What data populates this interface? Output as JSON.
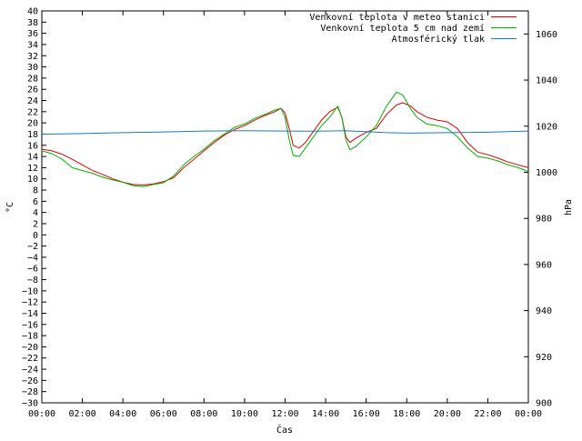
{
  "chart_data": {
    "type": "line",
    "xlabel": "Čas",
    "ylabel_left": "°C",
    "ylabel_right": "hPa",
    "xlim": [
      0,
      24
    ],
    "ylim_left": [
      -30,
      40
    ],
    "ylim_right": [
      900,
      1070
    ],
    "x_ticks": [
      "00:00",
      "02:00",
      "04:00",
      "06:00",
      "08:00",
      "10:00",
      "12:00",
      "14:00",
      "16:00",
      "18:00",
      "20:00",
      "22:00",
      "00:00"
    ],
    "y_left_ticks": [
      40,
      38,
      36,
      34,
      32,
      30,
      28,
      26,
      24,
      22,
      20,
      18,
      16,
      14,
      12,
      10,
      8,
      6,
      4,
      2,
      0,
      -2,
      -4,
      -6,
      -8,
      -10,
      -12,
      -14,
      -16,
      -18,
      -20,
      -22,
      -24,
      -26,
      -28,
      -30
    ],
    "y_right_ticks": [
      1060,
      1040,
      1020,
      1000,
      980,
      960,
      940,
      920,
      900
    ],
    "grid": false,
    "legend_position": "top-right",
    "series": [
      {
        "name": "Venkovní teplota v meteo stanici",
        "axis": "left",
        "color": "#e00000",
        "points": [
          [
            0,
            15.3
          ],
          [
            0.5,
            15.0
          ],
          [
            1.0,
            14.4
          ],
          [
            1.5,
            13.5
          ],
          [
            2.0,
            12.5
          ],
          [
            2.5,
            11.5
          ],
          [
            3.0,
            10.8
          ],
          [
            3.5,
            10.0
          ],
          [
            4.0,
            9.4
          ],
          [
            4.5,
            9.0
          ],
          [
            5.0,
            8.9
          ],
          [
            5.5,
            9.1
          ],
          [
            6.0,
            9.5
          ],
          [
            6.5,
            10.2
          ],
          [
            7.0,
            12.0
          ],
          [
            7.5,
            13.5
          ],
          [
            8.0,
            15.0
          ],
          [
            8.5,
            16.5
          ],
          [
            9.0,
            17.8
          ],
          [
            9.5,
            18.8
          ],
          [
            10.0,
            19.5
          ],
          [
            10.5,
            20.5
          ],
          [
            11.0,
            21.3
          ],
          [
            11.5,
            22.0
          ],
          [
            11.8,
            22.6
          ],
          [
            12.0,
            21.8
          ],
          [
            12.2,
            19.0
          ],
          [
            12.4,
            16.0
          ],
          [
            12.7,
            15.5
          ],
          [
            13.0,
            16.5
          ],
          [
            13.4,
            18.5
          ],
          [
            13.8,
            20.5
          ],
          [
            14.2,
            22.0
          ],
          [
            14.6,
            22.8
          ],
          [
            14.8,
            21.0
          ],
          [
            15.0,
            17.5
          ],
          [
            15.2,
            16.5
          ],
          [
            15.5,
            17.3
          ],
          [
            16.0,
            18.3
          ],
          [
            16.5,
            19.0
          ],
          [
            17.0,
            21.5
          ],
          [
            17.5,
            23.2
          ],
          [
            17.8,
            23.6
          ],
          [
            18.2,
            23.0
          ],
          [
            18.5,
            22.0
          ],
          [
            19.0,
            21.0
          ],
          [
            19.5,
            20.5
          ],
          [
            20.0,
            20.2
          ],
          [
            20.5,
            19.0
          ],
          [
            21.0,
            16.5
          ],
          [
            21.5,
            14.8
          ],
          [
            22.0,
            14.3
          ],
          [
            22.5,
            13.7
          ],
          [
            23.0,
            13.0
          ],
          [
            23.5,
            12.5
          ],
          [
            24.0,
            12.0
          ]
        ]
      },
      {
        "name": "Venkovní teplota 5 cm nad zemí",
        "axis": "left",
        "color": "#00b000",
        "points": [
          [
            0,
            15.0
          ],
          [
            0.5,
            14.5
          ],
          [
            1.0,
            13.5
          ],
          [
            1.5,
            12.0
          ],
          [
            2.0,
            11.5
          ],
          [
            2.5,
            11.0
          ],
          [
            3.0,
            10.3
          ],
          [
            3.5,
            9.8
          ],
          [
            4.0,
            9.4
          ],
          [
            4.5,
            8.8
          ],
          [
            5.0,
            8.6
          ],
          [
            5.5,
            9.0
          ],
          [
            6.0,
            9.3
          ],
          [
            6.5,
            10.5
          ],
          [
            7.0,
            12.5
          ],
          [
            7.5,
            14.0
          ],
          [
            8.0,
            15.3
          ],
          [
            8.5,
            16.8
          ],
          [
            9.0,
            18.0
          ],
          [
            9.5,
            19.2
          ],
          [
            10.0,
            19.8
          ],
          [
            10.5,
            20.8
          ],
          [
            11.0,
            21.5
          ],
          [
            11.5,
            22.3
          ],
          [
            11.8,
            22.6
          ],
          [
            12.0,
            21.0
          ],
          [
            12.2,
            17.0
          ],
          [
            12.4,
            14.2
          ],
          [
            12.7,
            14.0
          ],
          [
            13.0,
            15.5
          ],
          [
            13.4,
            17.5
          ],
          [
            13.8,
            19.5
          ],
          [
            14.2,
            21.0
          ],
          [
            14.6,
            23.0
          ],
          [
            14.8,
            21.0
          ],
          [
            15.0,
            17.0
          ],
          [
            15.2,
            15.2
          ],
          [
            15.5,
            15.8
          ],
          [
            16.0,
            17.5
          ],
          [
            16.5,
            19.5
          ],
          [
            17.0,
            23.0
          ],
          [
            17.5,
            25.5
          ],
          [
            17.8,
            25.0
          ],
          [
            18.2,
            22.5
          ],
          [
            18.5,
            21.0
          ],
          [
            19.0,
            19.8
          ],
          [
            19.5,
            19.5
          ],
          [
            20.0,
            19.0
          ],
          [
            20.5,
            17.5
          ],
          [
            21.0,
            15.5
          ],
          [
            21.5,
            14.0
          ],
          [
            22.0,
            13.7
          ],
          [
            22.5,
            13.2
          ],
          [
            23.0,
            12.5
          ],
          [
            23.5,
            12.0
          ],
          [
            24.0,
            11.3
          ]
        ]
      },
      {
        "name": "Atmosférický tlak",
        "axis": "right",
        "color": "#1a78c8",
        "points": [
          [
            0,
            1016.5
          ],
          [
            2.0,
            1016.8
          ],
          [
            4.0,
            1017.2
          ],
          [
            6.0,
            1017.5
          ],
          [
            8.0,
            1017.9
          ],
          [
            10.0,
            1018.0
          ],
          [
            12.0,
            1017.9
          ],
          [
            13.0,
            1017.8
          ],
          [
            14.0,
            1017.9
          ],
          [
            15.0,
            1018.0
          ],
          [
            16.0,
            1017.6
          ],
          [
            17.0,
            1017.2
          ],
          [
            18.0,
            1017.0
          ],
          [
            20.0,
            1017.2
          ],
          [
            22.0,
            1017.4
          ],
          [
            24.0,
            1017.9
          ]
        ]
      }
    ]
  }
}
